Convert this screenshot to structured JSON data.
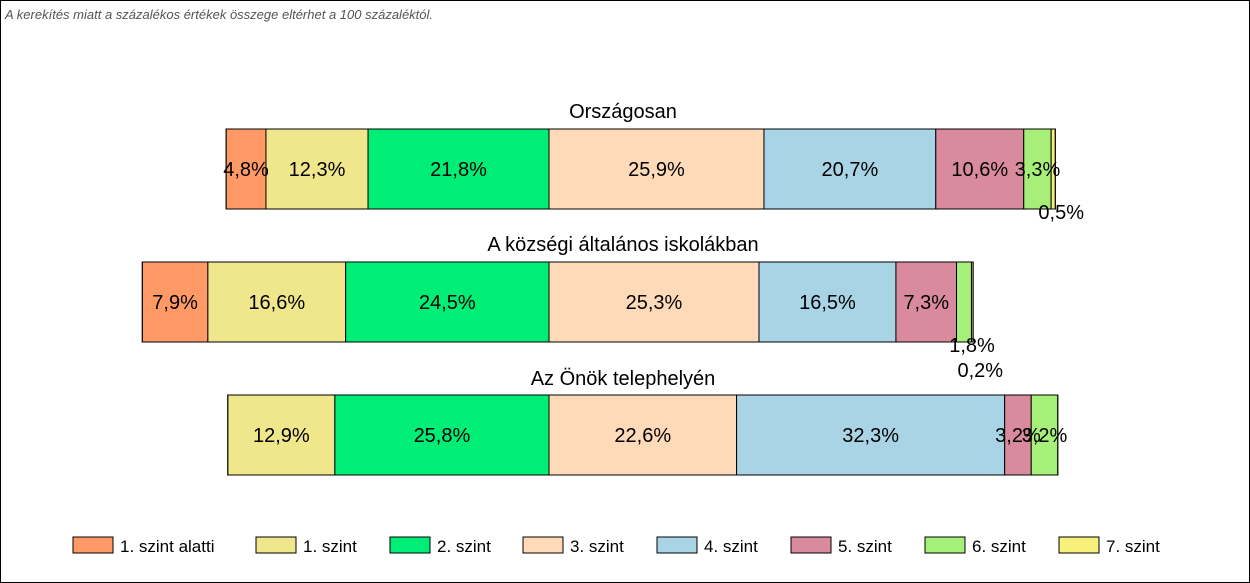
{
  "note": "A kerekítés miatt a  százalékos értékek összege eltérhet a 100 százaléktól.",
  "chart_data": {
    "type": "bar",
    "orientation": "horizontal",
    "stacked": true,
    "legend_position": "bottom",
    "series_names": [
      "1. szint alatti",
      "1. szint",
      "2. szint",
      "3. szint",
      "4. szint",
      "5. szint",
      "6. szint",
      "7. szint"
    ],
    "colors": [
      "#FF9966",
      "#F0E68C",
      "#00EE76",
      "#FFDAB9",
      "#A8D4E6",
      "#D98A9C",
      "#A6F07A",
      "#F7F07A"
    ],
    "groups": [
      {
        "title": "Országosan",
        "values": [
          4.8,
          12.3,
          21.8,
          25.9,
          20.7,
          10.6,
          3.3,
          0.5
        ],
        "labels": [
          "4,8%",
          "12,3%",
          "21,8%",
          "25,9%",
          "20,7%",
          "10,6%",
          "3,3%",
          "0,5%"
        ]
      },
      {
        "title": "A községi általános iskolákban",
        "values": [
          7.9,
          16.6,
          24.5,
          25.3,
          16.5,
          7.3,
          1.8,
          0.2
        ],
        "labels": [
          "7,9%",
          "16,6%",
          "24,5%",
          "25,3%",
          "16,5%",
          "7,3%",
          "1,8%",
          "0,2%"
        ]
      },
      {
        "title": "Az Önök telephelyén",
        "values": [
          0,
          12.9,
          25.8,
          22.6,
          32.3,
          3.2,
          3.2,
          0
        ],
        "labels": [
          "",
          "12,9%",
          "25,8%",
          "22,6%",
          "32,3%",
          "3,2%",
          "3,2%",
          ""
        ]
      }
    ]
  }
}
